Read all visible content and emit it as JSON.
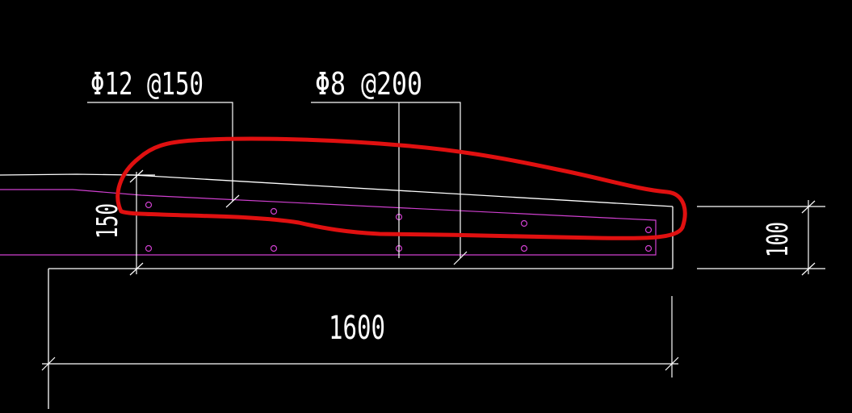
{
  "annotations": {
    "rebar_main": "Φ12 @150",
    "rebar_dist": "Φ8 @200",
    "thickness_left": "150",
    "thickness_right": "100",
    "span_length": "1600"
  },
  "colors": {
    "background": "#000000",
    "lines": "#ffffff",
    "rebar": "#d040d0",
    "highlight": "#e01010"
  }
}
